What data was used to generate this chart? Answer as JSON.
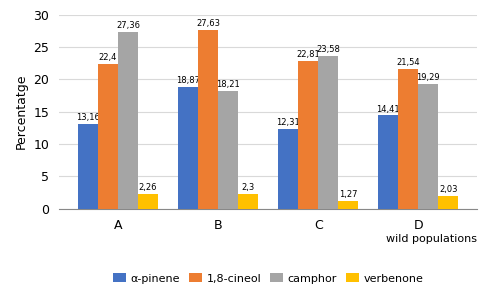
{
  "categories": [
    "A",
    "B",
    "C",
    "D"
  ],
  "series": {
    "α-pinene": [
      13.16,
      18.87,
      12.31,
      14.41
    ],
    "1,8-cineol": [
      22.4,
      27.63,
      22.81,
      21.54
    ],
    "camphor": [
      27.36,
      18.21,
      23.58,
      19.29
    ],
    "verbenone": [
      2.26,
      2.3,
      1.27,
      2.03
    ]
  },
  "labels": {
    "α-pinene": [
      "13,16",
      "18,87",
      "12,31",
      "14,41"
    ],
    "1,8-cineol": [
      "22,4",
      "27,63",
      "22,81",
      "21,54"
    ],
    "camphor": [
      "27,36",
      "18,21",
      "23,58",
      "19,29"
    ],
    "verbenone": [
      "2,26",
      "2,3",
      "1,27",
      "2,03"
    ]
  },
  "colors": {
    "α-pinene": "#4472c4",
    "1,8-cineol": "#ed7d31",
    "camphor": "#a5a5a5",
    "verbenone": "#ffc000"
  },
  "ylabel": "Percentatge",
  "xlabel": "wild populations",
  "ylim": [
    0,
    30
  ],
  "yticks": [
    0,
    5,
    10,
    15,
    20,
    25,
    30
  ],
  "bar_width": 0.2,
  "legend_order": [
    "α-pinene",
    "1,8-cineol",
    "camphor",
    "verbenone"
  ],
  "label_fontsize": 6.0,
  "axis_label_fontsize": 9,
  "tick_fontsize": 9,
  "legend_fontsize": 8,
  "background_color": "#ffffff",
  "grid_color": "#d9d9d9"
}
